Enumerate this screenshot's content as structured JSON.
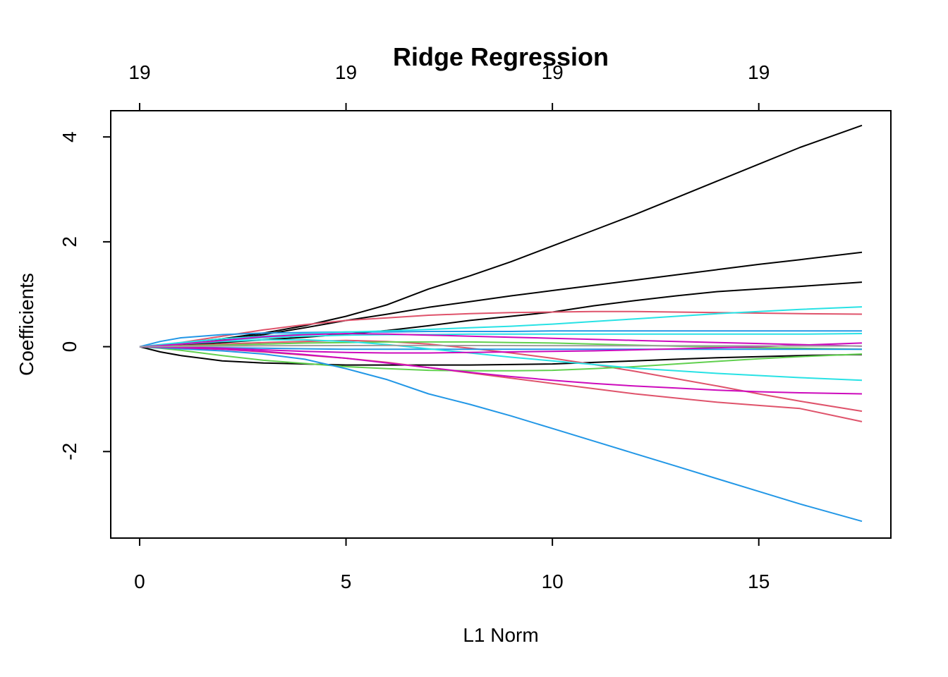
{
  "chart_data": {
    "type": "line",
    "title": "Ridge Regression",
    "xlabel": "L1 Norm",
    "ylabel": "Coefficients",
    "xlim": [
      -0.7,
      18.2
    ],
    "ylim": [
      -3.65,
      4.5
    ],
    "x_ticks": [
      0,
      5,
      10,
      15
    ],
    "x_tick_labels": [
      "0",
      "5",
      "10",
      "15"
    ],
    "y_ticks": [
      -2,
      0,
      2,
      4
    ],
    "y_tick_labels": [
      "-2",
      "0",
      "2",
      "4"
    ],
    "top_ticks": [
      0,
      5,
      10,
      15
    ],
    "top_tick_labels": [
      "19",
      "19",
      "19",
      "19"
    ],
    "grid": false,
    "legend": "none",
    "x": [
      0,
      0.5,
      1,
      2,
      3,
      4,
      5,
      6,
      7,
      8,
      9,
      10,
      11,
      12,
      13,
      14,
      15,
      16,
      17.5
    ],
    "series": [
      {
        "color": "#000000",
        "values": [
          0,
          0.03,
          0.07,
          0.15,
          0.26,
          0.4,
          0.58,
          0.8,
          1.1,
          1.35,
          1.62,
          1.92,
          2.22,
          2.52,
          2.84,
          3.16,
          3.48,
          3.8,
          4.22
        ]
      },
      {
        "color": "#000000",
        "values": [
          0,
          0.02,
          0.05,
          0.13,
          0.23,
          0.36,
          0.5,
          0.62,
          0.75,
          0.86,
          0.97,
          1.07,
          1.17,
          1.27,
          1.37,
          1.47,
          1.57,
          1.66,
          1.8
        ]
      },
      {
        "color": "#000000",
        "values": [
          0,
          0.01,
          0.03,
          0.08,
          0.13,
          0.18,
          0.24,
          0.31,
          0.4,
          0.5,
          0.58,
          0.66,
          0.78,
          0.88,
          0.97,
          1.05,
          1.1,
          1.15,
          1.23
        ]
      },
      {
        "color": "#000000",
        "values": [
          0,
          -0.1,
          -0.17,
          -0.27,
          -0.31,
          -0.33,
          -0.35,
          -0.35,
          -0.35,
          -0.35,
          -0.34,
          -0.33,
          -0.3,
          -0.27,
          -0.24,
          -0.21,
          -0.19,
          -0.17,
          -0.15
        ]
      },
      {
        "color": "#DF536B",
        "values": [
          0,
          0.03,
          0.08,
          0.2,
          0.32,
          0.42,
          0.5,
          0.55,
          0.6,
          0.63,
          0.65,
          0.66,
          0.67,
          0.67,
          0.66,
          0.65,
          0.64,
          0.63,
          0.62
        ]
      },
      {
        "color": "#DF536B",
        "values": [
          0,
          -0.01,
          -0.02,
          -0.05,
          -0.1,
          -0.16,
          -0.22,
          -0.3,
          -0.4,
          -0.5,
          -0.6,
          -0.7,
          -0.8,
          -0.9,
          -0.98,
          -1.06,
          -1.12,
          -1.18,
          -1.43
        ]
      },
      {
        "color": "#DF536B",
        "values": [
          0,
          0.01,
          0.02,
          0.05,
          0.08,
          0.1,
          0.12,
          0.1,
          0.05,
          -0.03,
          -0.12,
          -0.22,
          -0.34,
          -0.47,
          -0.61,
          -0.75,
          -0.9,
          -1.04,
          -1.23
        ]
      },
      {
        "color": "#61D04F",
        "values": [
          0,
          -0.03,
          -0.07,
          -0.17,
          -0.26,
          -0.32,
          -0.38,
          -0.42,
          -0.45,
          -0.46,
          -0.46,
          -0.45,
          -0.42,
          -0.38,
          -0.33,
          -0.28,
          -0.23,
          -0.19,
          -0.14
        ]
      },
      {
        "color": "#61D04F",
        "values": [
          0,
          0.005,
          0.01,
          0.03,
          0.05,
          0.07,
          0.08,
          0.09,
          0.09,
          0.09,
          0.08,
          0.07,
          0.05,
          0.03,
          0.01,
          -0.01,
          -0.02,
          -0.03,
          -0.05
        ]
      },
      {
        "color": "#2297E6",
        "values": [
          0,
          -0.02,
          -0.04,
          -0.08,
          -0.14,
          -0.24,
          -0.42,
          -0.63,
          -0.9,
          -1.1,
          -1.32,
          -1.56,
          -1.8,
          -2.04,
          -2.28,
          -2.52,
          -2.76,
          -3.0,
          -3.33
        ]
      },
      {
        "color": "#2297E6",
        "values": [
          0,
          0.1,
          0.17,
          0.23,
          0.26,
          0.27,
          0.28,
          0.28,
          0.29,
          0.29,
          0.29,
          0.3,
          0.3,
          0.3,
          0.3,
          0.3,
          0.3,
          0.3,
          0.3
        ]
      },
      {
        "color": "#2297E6",
        "values": [
          0,
          -0.005,
          -0.01,
          -0.02,
          -0.03,
          -0.04,
          -0.05,
          -0.05,
          -0.05,
          -0.05,
          -0.05,
          -0.05,
          -0.05,
          -0.05,
          -0.05,
          -0.05,
          -0.05,
          -0.05,
          -0.05
        ]
      },
      {
        "color": "#28E2E5",
        "values": [
          0,
          0.04,
          0.08,
          0.15,
          0.2,
          0.25,
          0.28,
          0.3,
          0.33,
          0.36,
          0.39,
          0.43,
          0.48,
          0.53,
          0.58,
          0.63,
          0.67,
          0.71,
          0.76
        ]
      },
      {
        "color": "#28E2E5",
        "values": [
          0,
          0.02,
          0.05,
          0.1,
          0.13,
          0.13,
          0.1,
          0.04,
          -0.04,
          -0.12,
          -0.2,
          -0.27,
          -0.34,
          -0.41,
          -0.46,
          -0.51,
          -0.55,
          -0.59,
          -0.64
        ]
      },
      {
        "color": "#28E2E5",
        "values": [
          0,
          0.03,
          0.06,
          0.12,
          0.17,
          0.2,
          0.22,
          0.23,
          0.23,
          0.24,
          0.24,
          0.24,
          0.24,
          0.24,
          0.24,
          0.24,
          0.24,
          0.24,
          0.25
        ]
      },
      {
        "color": "#CD0BBC",
        "values": [
          0,
          0.02,
          0.05,
          0.12,
          0.19,
          0.23,
          0.25,
          0.24,
          0.22,
          0.2,
          0.18,
          0.16,
          0.14,
          0.12,
          0.1,
          0.08,
          0.06,
          0.04,
          0.01
        ]
      },
      {
        "color": "#CD0BBC",
        "values": [
          0,
          -0.01,
          -0.02,
          -0.05,
          -0.09,
          -0.15,
          -0.22,
          -0.31,
          -0.4,
          -0.49,
          -0.57,
          -0.64,
          -0.7,
          -0.75,
          -0.79,
          -0.83,
          -0.86,
          -0.88,
          -0.9
        ]
      },
      {
        "color": "#CD0BBC",
        "values": [
          0,
          -0.005,
          -0.01,
          -0.03,
          -0.06,
          -0.09,
          -0.11,
          -0.12,
          -0.12,
          -0.11,
          -0.1,
          -0.09,
          -0.08,
          -0.06,
          -0.04,
          -0.02,
          0.0,
          0.03,
          0.07
        ]
      },
      {
        "color": "#9E9E9E",
        "values": [
          0,
          0.003,
          0.006,
          0.012,
          0.017,
          0.02,
          0.022,
          0.023,
          0.023,
          0.022,
          0.021,
          0.02,
          0.019,
          0.018,
          0.017,
          0.016,
          0.015,
          0.014,
          0.013
        ]
      }
    ]
  }
}
